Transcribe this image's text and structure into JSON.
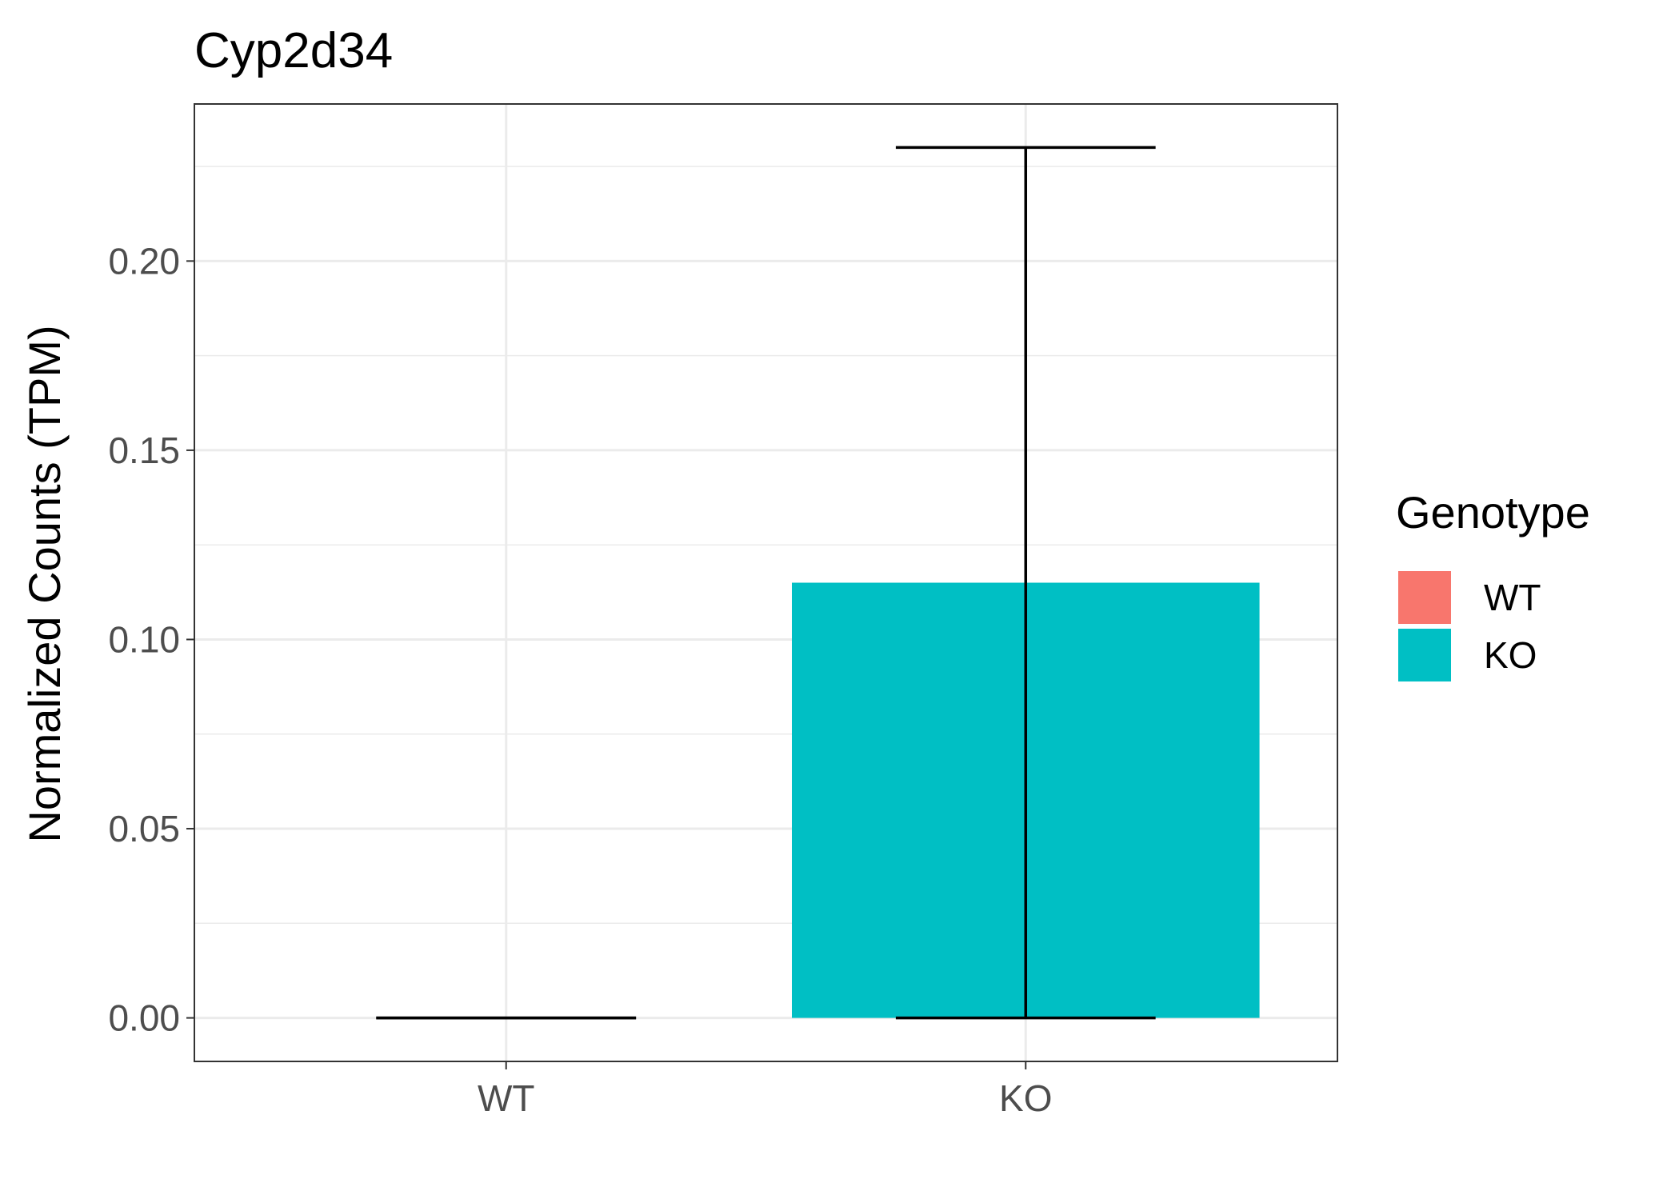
{
  "chart_data": {
    "type": "bar",
    "title": "Cyp2d34",
    "xlabel": "",
    "ylabel": "Normalized Counts (TPM)",
    "categories": [
      "WT",
      "KO"
    ],
    "values": [
      0.0,
      0.115
    ],
    "error_bars": [
      {
        "low": 0.0,
        "high": 0.0
      },
      {
        "low": 0.0,
        "high": 0.23
      }
    ],
    "colors": [
      "#F8766D",
      "#00BFC4"
    ],
    "ylim": [
      -0.0115,
      0.2415
    ],
    "yticks": [
      "0.00",
      "0.05",
      "0.10",
      "0.15",
      "0.20"
    ],
    "ytick_values": [
      0.0,
      0.05,
      0.1,
      0.15,
      0.2
    ],
    "grid": true,
    "legend": {
      "title": "Genotype",
      "position": "right",
      "entries": [
        {
          "label": "WT",
          "color": "#F8766D"
        },
        {
          "label": "KO",
          "color": "#00BFC4"
        }
      ]
    }
  }
}
